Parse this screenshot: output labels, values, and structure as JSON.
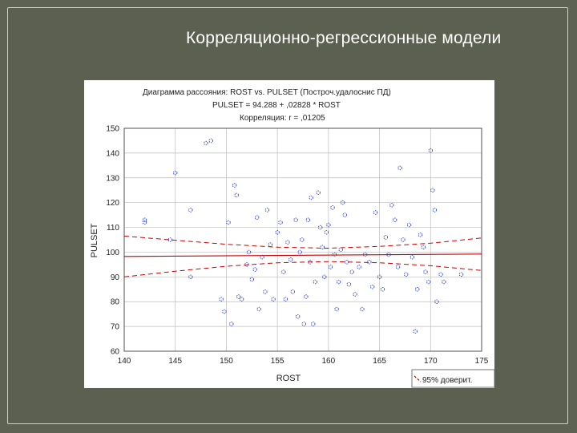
{
  "slide": {
    "title": "Корреляционно-регрессионные модели"
  },
  "chart_data": {
    "type": "scatter",
    "title": "Диаграмма рассояния: ROST    vs. PULSET   (Построч.удалоснис ПД)",
    "equation": "PULSET   = 94.288 + ,02828 * ROST",
    "correlation": "Корреляция: r =  ,01205",
    "xlabel": "ROST",
    "ylabel": "PULSET",
    "xlim": [
      140,
      175
    ],
    "ylim": [
      60,
      150
    ],
    "x_ticks": [
      140,
      145,
      150,
      155,
      160,
      165,
      170,
      175
    ],
    "y_ticks": [
      60,
      70,
      80,
      90,
      100,
      110,
      120,
      130,
      140,
      150
    ],
    "grid": true,
    "legend_placement": "bottom-right",
    "legend": [
      {
        "name": "95% доверит.",
        "style": "dashed"
      }
    ],
    "regression": {
      "intercept": 94.288,
      "slope": 0.02828
    },
    "confidence_band": {
      "x": [
        140,
        145,
        150,
        155,
        160,
        165,
        170,
        175
      ],
      "upper": [
        106.5,
        104.8,
        103.2,
        102.0,
        101.6,
        102.3,
        103.6,
        105.7
      ],
      "lower": [
        90.0,
        92.3,
        94.3,
        95.7,
        96.2,
        95.7,
        94.5,
        92.6
      ]
    },
    "points": [
      {
        "x": 142,
        "y": 113
      },
      {
        "x": 142,
        "y": 112
      },
      {
        "x": 144.5,
        "y": 105
      },
      {
        "x": 145,
        "y": 132
      },
      {
        "x": 146.5,
        "y": 117
      },
      {
        "x": 146.5,
        "y": 90
      },
      {
        "x": 148,
        "y": 144
      },
      {
        "x": 148.5,
        "y": 145
      },
      {
        "x": 149.5,
        "y": 81
      },
      {
        "x": 149.8,
        "y": 76
      },
      {
        "x": 150.2,
        "y": 112
      },
      {
        "x": 150.5,
        "y": 71
      },
      {
        "x": 150.8,
        "y": 127
      },
      {
        "x": 151,
        "y": 123
      },
      {
        "x": 151.2,
        "y": 82
      },
      {
        "x": 151.5,
        "y": 81
      },
      {
        "x": 152,
        "y": 95
      },
      {
        "x": 152.2,
        "y": 100
      },
      {
        "x": 152.5,
        "y": 89
      },
      {
        "x": 152.8,
        "y": 93
      },
      {
        "x": 153,
        "y": 114
      },
      {
        "x": 153.2,
        "y": 77
      },
      {
        "x": 153.5,
        "y": 98
      },
      {
        "x": 153.8,
        "y": 84
      },
      {
        "x": 154,
        "y": 117
      },
      {
        "x": 154.3,
        "y": 103
      },
      {
        "x": 154.6,
        "y": 81
      },
      {
        "x": 155,
        "y": 108
      },
      {
        "x": 155.3,
        "y": 112
      },
      {
        "x": 155.6,
        "y": 92
      },
      {
        "x": 155.8,
        "y": 81
      },
      {
        "x": 156,
        "y": 104
      },
      {
        "x": 156.3,
        "y": 97
      },
      {
        "x": 156.5,
        "y": 84
      },
      {
        "x": 156.8,
        "y": 113
      },
      {
        "x": 157,
        "y": 74
      },
      {
        "x": 157.2,
        "y": 100
      },
      {
        "x": 157.4,
        "y": 105
      },
      {
        "x": 157.6,
        "y": 71
      },
      {
        "x": 157.8,
        "y": 82
      },
      {
        "x": 158,
        "y": 113
      },
      {
        "x": 158.2,
        "y": 96
      },
      {
        "x": 158.3,
        "y": 122
      },
      {
        "x": 158.5,
        "y": 71
      },
      {
        "x": 158.7,
        "y": 88
      },
      {
        "x": 159,
        "y": 124
      },
      {
        "x": 159.2,
        "y": 110
      },
      {
        "x": 159.4,
        "y": 102
      },
      {
        "x": 159.6,
        "y": 90
      },
      {
        "x": 159.8,
        "y": 108
      },
      {
        "x": 160,
        "y": 111
      },
      {
        "x": 160.2,
        "y": 94
      },
      {
        "x": 160.4,
        "y": 118
      },
      {
        "x": 160.6,
        "y": 99
      },
      {
        "x": 160.8,
        "y": 77
      },
      {
        "x": 161,
        "y": 88
      },
      {
        "x": 161.2,
        "y": 101
      },
      {
        "x": 161.4,
        "y": 120
      },
      {
        "x": 161.6,
        "y": 115
      },
      {
        "x": 161.8,
        "y": 96
      },
      {
        "x": 162,
        "y": 87
      },
      {
        "x": 162.3,
        "y": 92
      },
      {
        "x": 162.6,
        "y": 83
      },
      {
        "x": 163,
        "y": 94
      },
      {
        "x": 163.3,
        "y": 77
      },
      {
        "x": 163.6,
        "y": 99
      },
      {
        "x": 164,
        "y": 96
      },
      {
        "x": 164.3,
        "y": 86
      },
      {
        "x": 164.6,
        "y": 116
      },
      {
        "x": 165,
        "y": 90
      },
      {
        "x": 165.3,
        "y": 85
      },
      {
        "x": 165.6,
        "y": 106
      },
      {
        "x": 165.9,
        "y": 99
      },
      {
        "x": 166.2,
        "y": 119
      },
      {
        "x": 166.5,
        "y": 113
      },
      {
        "x": 166.8,
        "y": 94
      },
      {
        "x": 167,
        "y": 134
      },
      {
        "x": 167.3,
        "y": 105
      },
      {
        "x": 167.6,
        "y": 91
      },
      {
        "x": 167.9,
        "y": 111
      },
      {
        "x": 168.2,
        "y": 98
      },
      {
        "x": 168.5,
        "y": 68
      },
      {
        "x": 168.7,
        "y": 85
      },
      {
        "x": 169,
        "y": 107
      },
      {
        "x": 169.3,
        "y": 102
      },
      {
        "x": 169.5,
        "y": 92
      },
      {
        "x": 169.8,
        "y": 88
      },
      {
        "x": 170,
        "y": 141
      },
      {
        "x": 170.2,
        "y": 125
      },
      {
        "x": 170.4,
        "y": 117
      },
      {
        "x": 170.6,
        "y": 80
      },
      {
        "x": 171,
        "y": 91
      },
      {
        "x": 171.3,
        "y": 88
      },
      {
        "x": 173,
        "y": 91
      }
    ]
  }
}
